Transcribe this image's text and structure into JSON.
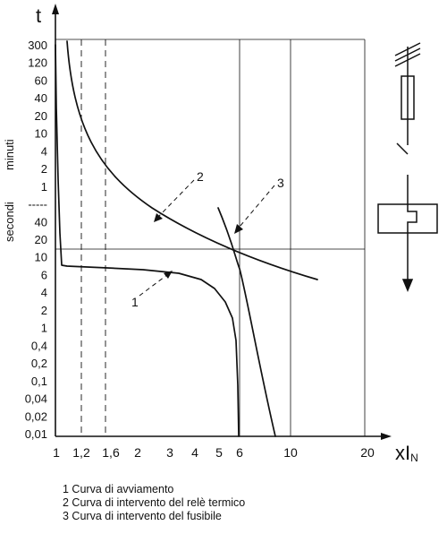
{
  "chart_data": {
    "type": "line",
    "title": "",
    "ylabel": "t",
    "xlabel": "xI",
    "xlabel_sub": "N",
    "y_unit_labels": {
      "seconds": "secondi",
      "minutes": "minuti"
    },
    "x_ticks": [
      "1",
      "1,2",
      "1,6",
      "2",
      "3",
      "4",
      "5",
      "6",
      "10",
      "20"
    ],
    "y_ticks_minutes": [
      "300",
      "120",
      "60",
      "40",
      "20",
      "10",
      "4",
      "2",
      "1"
    ],
    "y_ticks_separator": "-----",
    "y_ticks_seconds": [
      "40",
      "20",
      "10",
      "6",
      "4",
      "2",
      "1",
      "0,4",
      "0,2",
      "0,1",
      "0,04",
      "0,02",
      "0,01"
    ],
    "guide_lines": {
      "x": [
        "1,2",
        "1,6",
        "6"
      ],
      "y": "10 secondi"
    },
    "series": [
      {
        "name": "1",
        "label": "1 Curva di avviamento"
      },
      {
        "name": "2",
        "label": "2 Curva di intervento del relè termico"
      },
      {
        "name": "3",
        "label": "3 Curva di intervento del fusibile"
      }
    ],
    "grid": false,
    "legend_position": "bottom"
  }
}
